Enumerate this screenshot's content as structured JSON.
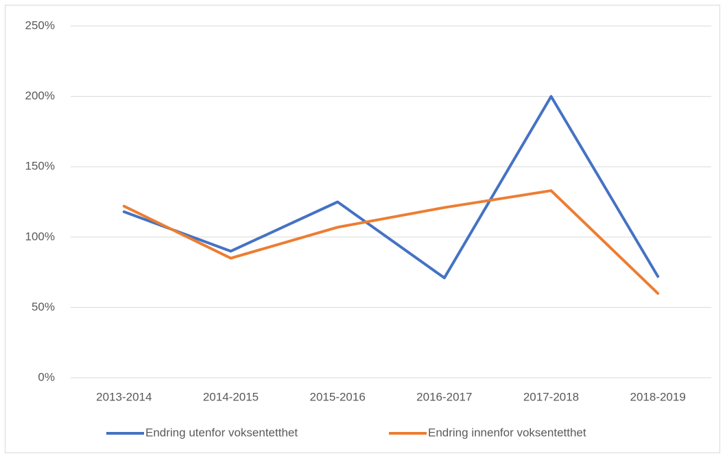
{
  "chart_data": {
    "type": "line",
    "categories": [
      "2013-2014",
      "2014-2015",
      "2015-2016",
      "2016-2017",
      "2017-2018",
      "2018-2019"
    ],
    "series": [
      {
        "name": "Endring utenfor voksentetthet",
        "color": "#4472c4",
        "values": [
          118,
          90,
          125,
          71,
          200,
          72
        ]
      },
      {
        "name": "Endring innenfor voksentetthet",
        "color": "#ed7d31",
        "values": [
          122,
          85,
          107,
          121,
          133,
          60
        ]
      }
    ],
    "ylim": [
      0,
      250
    ],
    "yticks": [
      {
        "value": 0,
        "label": "0%"
      },
      {
        "value": 50,
        "label": "50%"
      },
      {
        "value": 100,
        "label": "100%"
      },
      {
        "value": 150,
        "label": "150%"
      },
      {
        "value": 200,
        "label": "200%"
      },
      {
        "value": 250,
        "label": "250%"
      }
    ],
    "grid": true,
    "legend": "bottom"
  }
}
